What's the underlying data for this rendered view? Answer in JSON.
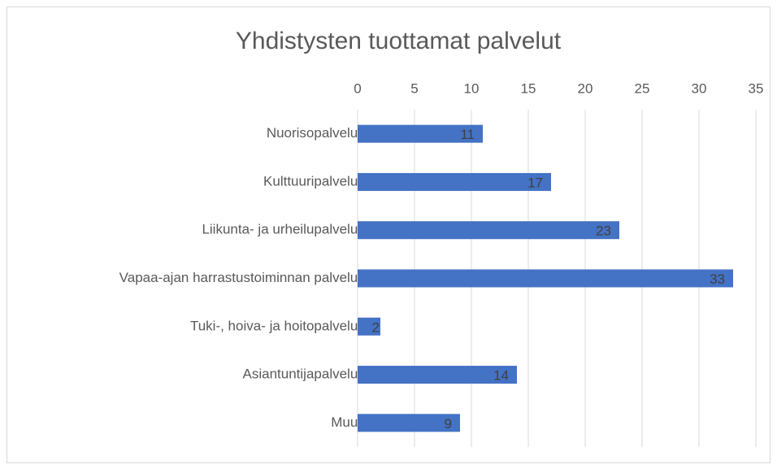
{
  "chart_data": {
    "type": "bar",
    "orientation": "horizontal",
    "title": "Yhdistysten tuottamat palvelut",
    "categories": [
      "Nuorisopalvelut",
      "Kulttuuripalvelut",
      "Liikunta- ja urheilupalvelut",
      "Vapaa-ajan harrastustoiminnan palvelut",
      "Tuki-, hoiva- ja hoitopalvelut",
      "Asiantuntijapalvelut",
      "Muut"
    ],
    "values": [
      11,
      17,
      23,
      33,
      2,
      14,
      9
    ],
    "color": "#4472c4",
    "xlim": [
      0,
      35
    ],
    "xticks": [
      0,
      5,
      10,
      15,
      20,
      25,
      30,
      35
    ],
    "grid": true
  }
}
